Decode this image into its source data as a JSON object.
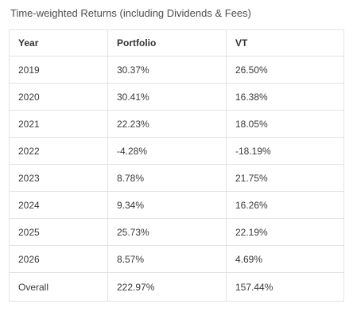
{
  "title": "Time-weighted Returns (including Dividends & Fees)",
  "table": {
    "headers": [
      "Year",
      "Portfolio",
      "VT"
    ],
    "rows": [
      [
        "2019",
        "30.37%",
        "26.50%"
      ],
      [
        "2020",
        "30.41%",
        "16.38%"
      ],
      [
        "2021",
        "22.23%",
        "18.05%"
      ],
      [
        "2022",
        "-4.28%",
        "-18.19%"
      ],
      [
        "2023",
        "8.78%",
        "21.75%"
      ],
      [
        "2024",
        "9.34%",
        "16.26%"
      ],
      [
        "2025",
        "25.73%",
        "22.19%"
      ],
      [
        "2026",
        "8.57%",
        "4.69%"
      ],
      [
        "Overall",
        "222.97%",
        "157.44%"
      ]
    ]
  }
}
